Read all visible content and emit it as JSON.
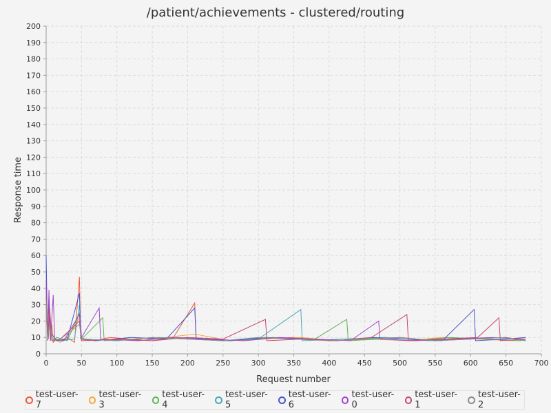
{
  "chart_data": {
    "type": "line",
    "title": "/patient/achievements - clustered/routing",
    "xlabel": "Request number",
    "ylabel": "Response time",
    "xlim": [
      0,
      700
    ],
    "ylim": [
      0,
      200
    ],
    "x_ticks": [
      0,
      50,
      100,
      150,
      200,
      250,
      300,
      350,
      400,
      450,
      500,
      550,
      600,
      650,
      700
    ],
    "y_ticks": [
      0,
      10,
      20,
      30,
      40,
      50,
      60,
      70,
      80,
      90,
      100,
      110,
      120,
      130,
      140,
      150,
      160,
      170,
      180,
      190,
      200
    ],
    "grid": true,
    "legend_position": "bottom",
    "series": [
      {
        "name": "test-user-7",
        "color": "#ed5a3a",
        "values": [
          [
            0,
            40
          ],
          [
            2,
            12
          ],
          [
            4,
            30
          ],
          [
            6,
            9
          ],
          [
            8,
            18
          ],
          [
            10,
            7
          ],
          [
            15,
            9
          ],
          [
            20,
            8
          ],
          [
            30,
            10
          ],
          [
            40,
            7
          ],
          [
            47,
            47
          ],
          [
            49,
            10
          ],
          [
            55,
            9
          ],
          [
            70,
            8
          ],
          [
            90,
            10
          ],
          [
            120,
            9
          ],
          [
            150,
            8
          ],
          [
            180,
            10
          ],
          [
            210,
            31
          ],
          [
            212,
            9
          ],
          [
            250,
            8
          ],
          [
            300,
            9
          ],
          [
            350,
            10
          ],
          [
            400,
            8
          ],
          [
            450,
            9
          ],
          [
            500,
            10
          ],
          [
            550,
            8
          ],
          [
            600,
            9
          ],
          [
            650,
            10
          ],
          [
            678,
            8
          ]
        ]
      },
      {
        "name": "test-user-3",
        "color": "#f5a83a",
        "values": [
          [
            0,
            35
          ],
          [
            2,
            10
          ],
          [
            4,
            25
          ],
          [
            6,
            8
          ],
          [
            8,
            14
          ],
          [
            10,
            9
          ],
          [
            20,
            7
          ],
          [
            30,
            9
          ],
          [
            47,
            22
          ],
          [
            49,
            9
          ],
          [
            60,
            8
          ],
          [
            90,
            9
          ],
          [
            130,
            8
          ],
          [
            170,
            10
          ],
          [
            210,
            12
          ],
          [
            260,
            8
          ],
          [
            310,
            9
          ],
          [
            360,
            10
          ],
          [
            410,
            8
          ],
          [
            460,
            9
          ],
          [
            510,
            8
          ],
          [
            560,
            10
          ],
          [
            610,
            9
          ],
          [
            660,
            8
          ],
          [
            678,
            9
          ]
        ]
      },
      {
        "name": "test-user-4",
        "color": "#5ab552",
        "values": [
          [
            0,
            30
          ],
          [
            3,
            10
          ],
          [
            5,
            20
          ],
          [
            8,
            8
          ],
          [
            15,
            10
          ],
          [
            30,
            8
          ],
          [
            47,
            25
          ],
          [
            50,
            9
          ],
          [
            80,
            22
          ],
          [
            82,
            8
          ],
          [
            120,
            9
          ],
          [
            160,
            10
          ],
          [
            210,
            9
          ],
          [
            260,
            8
          ],
          [
            320,
            10
          ],
          [
            380,
            9
          ],
          [
            425,
            21
          ],
          [
            427,
            8
          ],
          [
            470,
            9
          ],
          [
            520,
            8
          ],
          [
            570,
            10
          ],
          [
            620,
            9
          ],
          [
            670,
            8
          ],
          [
            678,
            9
          ]
        ]
      },
      {
        "name": "test-user-5",
        "color": "#45aab8",
        "values": [
          [
            0,
            38
          ],
          [
            2,
            9
          ],
          [
            5,
            22
          ],
          [
            8,
            9
          ],
          [
            20,
            8
          ],
          [
            40,
            9
          ],
          [
            47,
            30
          ],
          [
            50,
            9
          ],
          [
            100,
            8
          ],
          [
            150,
            10
          ],
          [
            200,
            9
          ],
          [
            250,
            8
          ],
          [
            300,
            9
          ],
          [
            360,
            27
          ],
          [
            362,
            8
          ],
          [
            420,
            9
          ],
          [
            480,
            10
          ],
          [
            540,
            8
          ],
          [
            600,
            9
          ],
          [
            650,
            10
          ],
          [
            678,
            8
          ]
        ]
      },
      {
        "name": "test-user-6",
        "color": "#4555c8",
        "values": [
          [
            0,
            60
          ],
          [
            2,
            8
          ],
          [
            4,
            35
          ],
          [
            6,
            10
          ],
          [
            8,
            12
          ],
          [
            15,
            8
          ],
          [
            30,
            9
          ],
          [
            47,
            37
          ],
          [
            49,
            9
          ],
          [
            70,
            8
          ],
          [
            120,
            10
          ],
          [
            170,
            9
          ],
          [
            210,
            28
          ],
          [
            212,
            9
          ],
          [
            260,
            8
          ],
          [
            310,
            10
          ],
          [
            360,
            9
          ],
          [
            410,
            8
          ],
          [
            460,
            10
          ],
          [
            510,
            9
          ],
          [
            560,
            8
          ],
          [
            605,
            27
          ],
          [
            607,
            8
          ],
          [
            650,
            9
          ],
          [
            678,
            10
          ]
        ]
      },
      {
        "name": "test-user-0",
        "color": "#a045c8",
        "values": [
          [
            0,
            45
          ],
          [
            2,
            10
          ],
          [
            4,
            39
          ],
          [
            6,
            8
          ],
          [
            10,
            36
          ],
          [
            12,
            9
          ],
          [
            25,
            8
          ],
          [
            47,
            24
          ],
          [
            50,
            10
          ],
          [
            75,
            28
          ],
          [
            77,
            9
          ],
          [
            130,
            8
          ],
          [
            180,
            10
          ],
          [
            230,
            9
          ],
          [
            280,
            8
          ],
          [
            330,
            10
          ],
          [
            380,
            9
          ],
          [
            430,
            8
          ],
          [
            470,
            20
          ],
          [
            472,
            9
          ],
          [
            520,
            8
          ],
          [
            580,
            9
          ],
          [
            630,
            10
          ],
          [
            678,
            9
          ]
        ]
      },
      {
        "name": "test-user-1",
        "color": "#c84570",
        "values": [
          [
            0,
            35
          ],
          [
            3,
            9
          ],
          [
            5,
            28
          ],
          [
            8,
            8
          ],
          [
            20,
            9
          ],
          [
            47,
            20
          ],
          [
            50,
            8
          ],
          [
            100,
            9
          ],
          [
            150,
            8
          ],
          [
            200,
            10
          ],
          [
            250,
            9
          ],
          [
            310,
            21
          ],
          [
            312,
            8
          ],
          [
            360,
            9
          ],
          [
            410,
            8
          ],
          [
            460,
            10
          ],
          [
            510,
            24
          ],
          [
            512,
            8
          ],
          [
            560,
            9
          ],
          [
            610,
            10
          ],
          [
            640,
            22
          ],
          [
            642,
            8
          ],
          [
            678,
            9
          ]
        ]
      },
      {
        "name": "test-user-2",
        "color": "#8c8c8c",
        "values": [
          [
            0,
            33
          ],
          [
            2,
            9
          ],
          [
            5,
            19
          ],
          [
            8,
            8
          ],
          [
            20,
            9
          ],
          [
            47,
            18
          ],
          [
            50,
            9
          ],
          [
            100,
            8
          ],
          [
            150,
            10
          ],
          [
            200,
            9
          ],
          [
            250,
            8
          ],
          [
            300,
            10
          ],
          [
            350,
            9
          ],
          [
            400,
            8
          ],
          [
            450,
            9
          ],
          [
            500,
            10
          ],
          [
            550,
            8
          ],
          [
            600,
            9
          ],
          [
            650,
            10
          ],
          [
            678,
            8
          ]
        ]
      }
    ]
  }
}
